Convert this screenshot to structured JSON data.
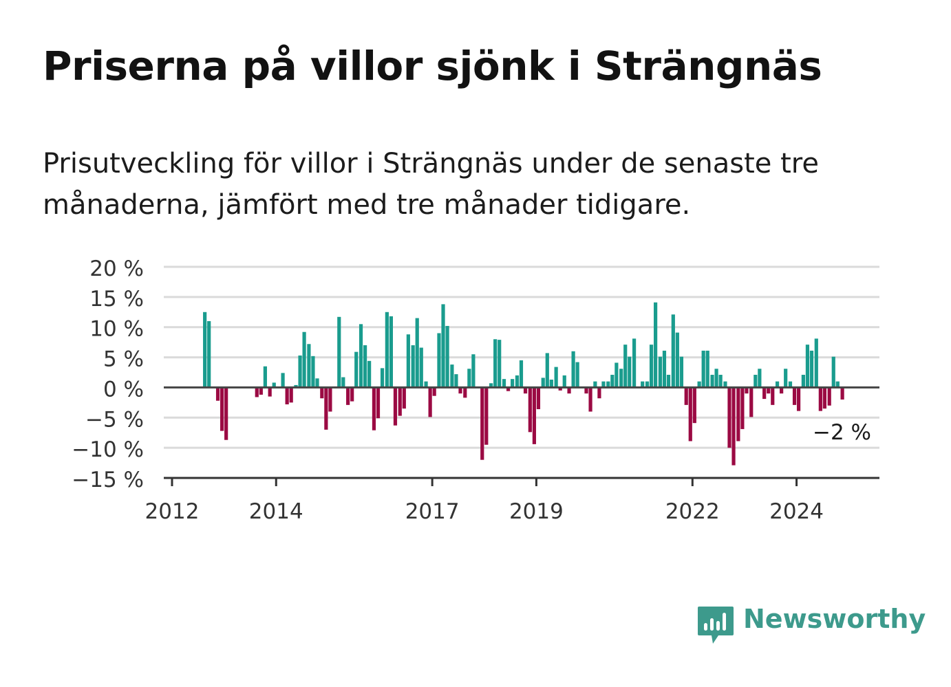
{
  "title": "Priserna på villor sjönk i Strängnäs",
  "subtitle": "Prisutveckling för villor i Strängnäs under de senaste tre månaderna, jämfört med tre månader tidigare.",
  "brand": "Newsworthy",
  "colors": {
    "positive": "#1a9c8e",
    "negative": "#9b0a43",
    "grid": "#dadada",
    "axis": "#333333",
    "brand": "#3d9a8c"
  },
  "chart_data": {
    "type": "bar",
    "x_unit": "month",
    "x_start": "2012-01",
    "x_end": "2025-06",
    "series": [
      {
        "values": [
          [
            2012.63,
            12.5
          ],
          [
            2012.71,
            11.0
          ],
          [
            2012.88,
            -2.2
          ],
          [
            2012.96,
            -7.2
          ],
          [
            2013.04,
            -8.7
          ],
          [
            2013.63,
            -1.6
          ],
          [
            2013.71,
            -1.2
          ],
          [
            2013.79,
            3.5
          ],
          [
            2013.88,
            -1.5
          ],
          [
            2013.96,
            0.8
          ],
          [
            2014.13,
            2.4
          ],
          [
            2014.21,
            -2.8
          ],
          [
            2014.29,
            -2.5
          ],
          [
            2014.38,
            0.4
          ],
          [
            2014.46,
            5.3
          ],
          [
            2014.54,
            9.2
          ],
          [
            2014.63,
            7.2
          ],
          [
            2014.71,
            5.2
          ],
          [
            2014.79,
            1.5
          ],
          [
            2014.88,
            -1.8
          ],
          [
            2014.96,
            -7.0
          ],
          [
            2015.04,
            -4.0
          ],
          [
            2015.21,
            11.7
          ],
          [
            2015.29,
            1.7
          ],
          [
            2015.38,
            -2.9
          ],
          [
            2015.46,
            -2.3
          ],
          [
            2015.54,
            5.9
          ],
          [
            2015.63,
            10.5
          ],
          [
            2015.71,
            7.0
          ],
          [
            2015.79,
            4.4
          ],
          [
            2015.88,
            -7.1
          ],
          [
            2015.96,
            -5.1
          ],
          [
            2016.04,
            3.2
          ],
          [
            2016.13,
            12.5
          ],
          [
            2016.21,
            11.8
          ],
          [
            2016.29,
            -6.3
          ],
          [
            2016.38,
            -4.7
          ],
          [
            2016.46,
            -3.5
          ],
          [
            2016.54,
            8.8
          ],
          [
            2016.63,
            7.0
          ],
          [
            2016.71,
            11.5
          ],
          [
            2016.79,
            6.6
          ],
          [
            2016.88,
            1.0
          ],
          [
            2016.96,
            -4.9
          ],
          [
            2017.04,
            -1.4
          ],
          [
            2017.13,
            9.0
          ],
          [
            2017.21,
            13.8
          ],
          [
            2017.29,
            10.2
          ],
          [
            2017.38,
            3.8
          ],
          [
            2017.46,
            2.2
          ],
          [
            2017.54,
            -1.0
          ],
          [
            2017.63,
            -1.7
          ],
          [
            2017.71,
            3.1
          ],
          [
            2017.79,
            5.5
          ],
          [
            2017.96,
            -12.0
          ],
          [
            2018.04,
            -9.5
          ],
          [
            2018.13,
            0.7
          ],
          [
            2018.21,
            8.0
          ],
          [
            2018.29,
            7.9
          ],
          [
            2018.38,
            1.4
          ],
          [
            2018.46,
            -0.6
          ],
          [
            2018.54,
            1.4
          ],
          [
            2018.63,
            2.0
          ],
          [
            2018.71,
            4.5
          ],
          [
            2018.79,
            -1.0
          ],
          [
            2018.88,
            -7.4
          ],
          [
            2018.96,
            -9.4
          ],
          [
            2019.04,
            -3.6
          ],
          [
            2019.13,
            1.6
          ],
          [
            2019.21,
            5.7
          ],
          [
            2019.29,
            1.3
          ],
          [
            2019.38,
            3.4
          ],
          [
            2019.46,
            -0.5
          ],
          [
            2019.54,
            2.0
          ],
          [
            2019.63,
            -1.0
          ],
          [
            2019.71,
            6.0
          ],
          [
            2019.79,
            4.2
          ],
          [
            2019.96,
            -1.0
          ],
          [
            2020.04,
            -4.0
          ],
          [
            2020.13,
            1.0
          ],
          [
            2020.21,
            -1.8
          ],
          [
            2020.29,
            1.0
          ],
          [
            2020.38,
            1.0
          ],
          [
            2020.46,
            2.1
          ],
          [
            2020.54,
            4.1
          ],
          [
            2020.63,
            3.1
          ],
          [
            2020.71,
            7.1
          ],
          [
            2020.79,
            5.1
          ],
          [
            2020.88,
            8.1
          ],
          [
            2021.04,
            1.0
          ],
          [
            2021.13,
            1.0
          ],
          [
            2021.21,
            7.1
          ],
          [
            2021.29,
            14.1
          ],
          [
            2021.38,
            5.1
          ],
          [
            2021.46,
            6.1
          ],
          [
            2021.54,
            2.1
          ],
          [
            2021.63,
            12.1
          ],
          [
            2021.71,
            9.1
          ],
          [
            2021.79,
            5.1
          ],
          [
            2021.88,
            -2.9
          ],
          [
            2021.96,
            -8.9
          ],
          [
            2022.04,
            -5.9
          ],
          [
            2022.13,
            1.0
          ],
          [
            2022.21,
            6.1
          ],
          [
            2022.29,
            6.1
          ],
          [
            2022.38,
            2.1
          ],
          [
            2022.46,
            3.1
          ],
          [
            2022.54,
            2.1
          ],
          [
            2022.63,
            1.0
          ],
          [
            2022.71,
            -10.0
          ],
          [
            2022.79,
            -12.9
          ],
          [
            2022.88,
            -8.9
          ],
          [
            2022.96,
            -6.9
          ],
          [
            2023.04,
            -1.0
          ],
          [
            2023.13,
            -4.9
          ],
          [
            2023.21,
            2.1
          ],
          [
            2023.29,
            3.1
          ],
          [
            2023.38,
            -1.9
          ],
          [
            2023.46,
            -1.0
          ],
          [
            2023.54,
            -2.9
          ],
          [
            2023.63,
            1.0
          ],
          [
            2023.71,
            -1.0
          ],
          [
            2023.79,
            3.1
          ],
          [
            2023.88,
            1.0
          ],
          [
            2023.96,
            -2.9
          ],
          [
            2024.04,
            -3.9
          ],
          [
            2024.13,
            2.1
          ],
          [
            2024.21,
            7.1
          ],
          [
            2024.29,
            6.1
          ],
          [
            2024.38,
            8.1
          ],
          [
            2024.46,
            -3.9
          ],
          [
            2024.54,
            -3.5
          ],
          [
            2024.63,
            -3.0
          ],
          [
            2024.71,
            5.1
          ],
          [
            2024.79,
            1.0
          ],
          [
            2024.88,
            -2.0
          ]
        ]
      }
    ],
    "yticks": [
      20,
      15,
      10,
      5,
      0,
      -5,
      -10,
      -15
    ],
    "ytick_labels": [
      "20 %",
      "15 %",
      "10 %",
      "5 %",
      "0 %",
      "−5 %",
      "−10 %",
      "−15 %"
    ],
    "ylim": [
      -15,
      20
    ],
    "xticks": [
      2012,
      2014,
      2017,
      2019,
      2022,
      2024
    ],
    "xtick_labels": [
      "2012",
      "2014",
      "2017",
      "2019",
      "2022",
      "2024"
    ],
    "xlim": [
      2012,
      2025.5
    ],
    "grid": true,
    "annotation": {
      "text": "−2 %"
    }
  }
}
